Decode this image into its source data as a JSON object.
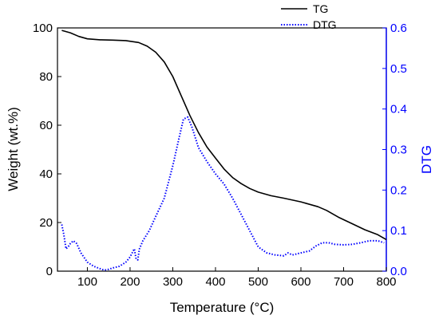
{
  "chart_data": {
    "type": "line",
    "xlabel": "Temperature (°C)",
    "ylabel_left": "Weight (wt.%)",
    "ylabel_right": "DTG",
    "xlim": [
      30,
      800
    ],
    "ylim_left": [
      0,
      100
    ],
    "ylim_right": [
      0,
      0.6
    ],
    "x_ticks": [
      100,
      200,
      300,
      400,
      500,
      600,
      700,
      800
    ],
    "y_left_ticks": [
      0,
      20,
      40,
      60,
      80,
      100
    ],
    "y_right_ticks": [
      0.0,
      0.1,
      0.2,
      0.3,
      0.4,
      0.5,
      0.6
    ],
    "grid": false,
    "legend_position": "top-right",
    "colors": {
      "tg": "#000000",
      "dtg": "#0000ff",
      "right_axis": "#0000ff"
    },
    "series": [
      {
        "name": "TG",
        "axis": "left",
        "style": "solid",
        "points": [
          [
            40,
            99
          ],
          [
            60,
            98
          ],
          [
            80,
            96.5
          ],
          [
            100,
            95.5
          ],
          [
            130,
            95.1
          ],
          [
            160,
            95
          ],
          [
            190,
            94.8
          ],
          [
            220,
            94
          ],
          [
            240,
            92.5
          ],
          [
            260,
            90
          ],
          [
            280,
            86
          ],
          [
            300,
            80
          ],
          [
            320,
            72
          ],
          [
            340,
            64
          ],
          [
            360,
            57
          ],
          [
            380,
            51
          ],
          [
            400,
            46.5
          ],
          [
            420,
            42
          ],
          [
            440,
            38.5
          ],
          [
            460,
            36
          ],
          [
            480,
            34
          ],
          [
            500,
            32.5
          ],
          [
            530,
            31
          ],
          [
            560,
            30
          ],
          [
            600,
            28.5
          ],
          [
            640,
            26.5
          ],
          [
            660,
            25
          ],
          [
            690,
            22
          ],
          [
            720,
            19.5
          ],
          [
            750,
            17
          ],
          [
            780,
            15
          ],
          [
            800,
            13
          ]
        ]
      },
      {
        "name": "DTG",
        "axis": "right",
        "style": "dotted",
        "points": [
          [
            40,
            0.115
          ],
          [
            45,
            0.09
          ],
          [
            50,
            0.055
          ],
          [
            55,
            0.06
          ],
          [
            60,
            0.068
          ],
          [
            67,
            0.075
          ],
          [
            75,
            0.068
          ],
          [
            85,
            0.045
          ],
          [
            100,
            0.022
          ],
          [
            115,
            0.012
          ],
          [
            125,
            0.008
          ],
          [
            135,
            0.004
          ],
          [
            145,
            0.003
          ],
          [
            160,
            0.008
          ],
          [
            175,
            0.012
          ],
          [
            190,
            0.022
          ],
          [
            200,
            0.035
          ],
          [
            205,
            0.045
          ],
          [
            210,
            0.055
          ],
          [
            214,
            0.03
          ],
          [
            218,
            0.028
          ],
          [
            222,
            0.055
          ],
          [
            230,
            0.075
          ],
          [
            245,
            0.1
          ],
          [
            260,
            0.135
          ],
          [
            280,
            0.18
          ],
          [
            300,
            0.26
          ],
          [
            315,
            0.33
          ],
          [
            325,
            0.375
          ],
          [
            335,
            0.38
          ],
          [
            345,
            0.355
          ],
          [
            360,
            0.305
          ],
          [
            380,
            0.27
          ],
          [
            400,
            0.24
          ],
          [
            420,
            0.215
          ],
          [
            440,
            0.18
          ],
          [
            460,
            0.14
          ],
          [
            480,
            0.1
          ],
          [
            500,
            0.06
          ],
          [
            520,
            0.045
          ],
          [
            540,
            0.04
          ],
          [
            560,
            0.038
          ],
          [
            570,
            0.045
          ],
          [
            580,
            0.04
          ],
          [
            600,
            0.045
          ],
          [
            620,
            0.05
          ],
          [
            635,
            0.062
          ],
          [
            650,
            0.07
          ],
          [
            665,
            0.07
          ],
          [
            680,
            0.066
          ],
          [
            700,
            0.065
          ],
          [
            720,
            0.066
          ],
          [
            740,
            0.07
          ],
          [
            760,
            0.075
          ],
          [
            780,
            0.075
          ],
          [
            795,
            0.07
          ]
        ]
      }
    ]
  }
}
